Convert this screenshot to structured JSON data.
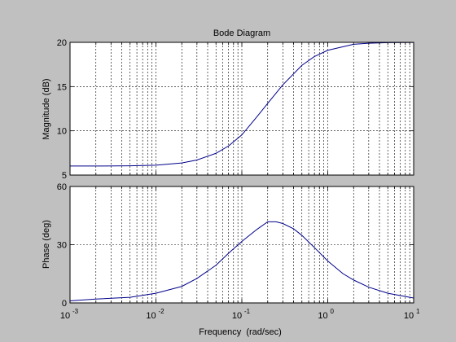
{
  "colors": {
    "figure_background": "#c0c0c0",
    "axes_background": "#ffffff",
    "series_line": "#00008b",
    "grid": "#000000"
  },
  "chart_data": [
    {
      "type": "line",
      "title": "Bode Diagram",
      "xlabel": "",
      "ylabel": "Magnitude (dB)",
      "xscale": "log",
      "xlim": [
        0.001,
        10
      ],
      "ylim": [
        5,
        20
      ],
      "yticks": [
        5,
        10,
        15,
        20
      ],
      "xticks": [
        0.001,
        0.01,
        0.1,
        1,
        10
      ],
      "grid": true,
      "series": [
        {
          "x": [
            0.001,
            0.002,
            0.005,
            0.01,
            0.02,
            0.03,
            0.05,
            0.07,
            0.1,
            0.15,
            0.2,
            0.3,
            0.5,
            0.7,
            1,
            2,
            3,
            5,
            10
          ],
          "values": [
            6.02,
            6.02,
            6.05,
            6.12,
            6.37,
            6.7,
            7.46,
            8.29,
            9.54,
            11.6,
            13.1,
            15.2,
            17.4,
            18.4,
            19.1,
            19.78,
            19.9,
            19.96,
            19.99
          ]
        }
      ]
    },
    {
      "type": "line",
      "title": "",
      "xlabel": "Frequency  (rad/sec)",
      "ylabel": "Phase (deg)",
      "xscale": "log",
      "xlim": [
        0.001,
        10
      ],
      "ylim": [
        0,
        60
      ],
      "yticks": [
        0,
        30,
        60
      ],
      "xticks": [
        0.001,
        0.01,
        0.1,
        1,
        10
      ],
      "xtick_labels": [
        {
          "base": "10",
          "exp": "-3"
        },
        {
          "base": "10",
          "exp": "-2"
        },
        {
          "base": "10",
          "exp": "-1"
        },
        {
          "base": "10",
          "exp": "0"
        },
        {
          "base": "10",
          "exp": "1"
        }
      ],
      "grid": true,
      "series": [
        {
          "x": [
            0.001,
            0.002,
            0.005,
            0.01,
            0.02,
            0.03,
            0.05,
            0.07,
            0.1,
            0.15,
            0.2,
            0.25,
            0.3,
            0.4,
            0.5,
            0.7,
            1,
            1.5,
            2,
            3,
            5,
            10
          ],
          "values": [
            1.03,
            1.98,
            2.9,
            5.0,
            8.5,
            12.6,
            19.4,
            25.6,
            31.7,
            37.9,
            41.8,
            41.8,
            40.9,
            38.2,
            34.8,
            28.5,
            21.6,
            15.1,
            11.8,
            8.1,
            5.0,
            2.5
          ]
        }
      ]
    }
  ]
}
